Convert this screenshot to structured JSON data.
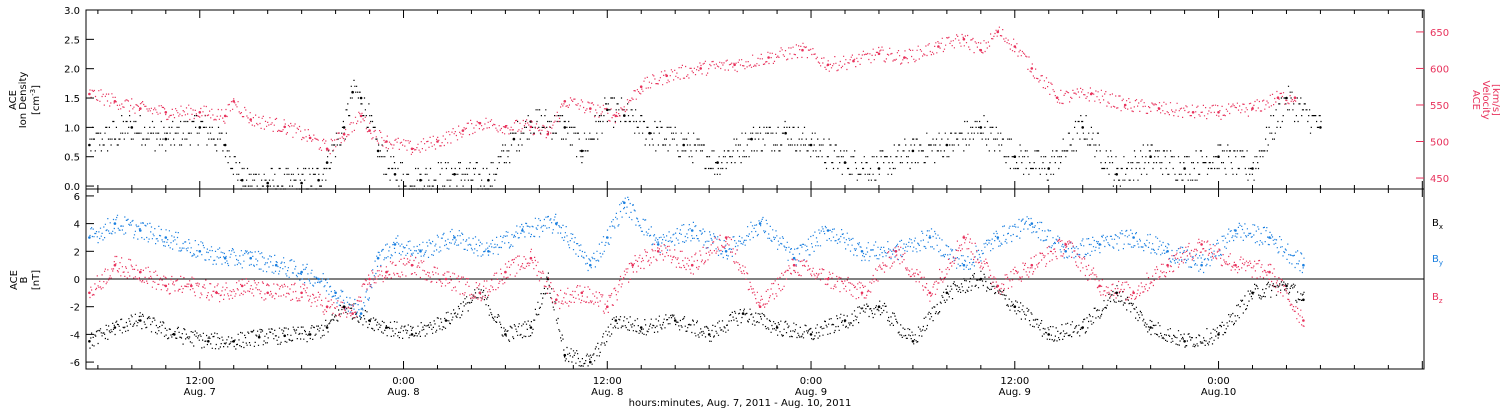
{
  "figure": {
    "xlabel": "hours:minutes, Aug.  7, 2011 - Aug. 10, 2011",
    "time_ticks": [
      {
        "hours": 12,
        "time": "12:00",
        "date": "Aug. 7"
      },
      {
        "hours": 24,
        "time": "0:00",
        "date": "Aug. 8"
      },
      {
        "hours": 36,
        "time": "12:00",
        "date": "Aug. 8"
      },
      {
        "hours": 48,
        "time": "0:00",
        "date": "Aug. 9"
      },
      {
        "hours": 60,
        "time": "12:00",
        "date": "Aug. 9"
      },
      {
        "hours": 72,
        "time": "0:00",
        "date": "Aug.10"
      }
    ],
    "colors": {
      "black": "#000000",
      "red": "#e8325c",
      "blue": "#1a7fe0"
    }
  },
  "chart_data": [
    {
      "type": "scatter",
      "panel": "top",
      "x_units": "hours since Aug. 7, 2011 00:00",
      "xlim": [
        5.3,
        84.1
      ],
      "left_axis": {
        "label_lines": [
          "ACE",
          "Ion Density"
        ],
        "unit_base": "[cm",
        "unit_sup": "-3",
        "unit_end": "]",
        "ylim": [
          -0.05,
          3.0
        ],
        "ticks": [
          "0.0",
          "0.5",
          "1.0",
          "1.5",
          "2.0",
          "2.5",
          "3.0"
        ]
      },
      "right_axis": {
        "label_lines": [
          "ACE",
          "Velocity"
        ],
        "unit": "[km/s]",
        "ylim": [
          435,
          680
        ],
        "ticks": [
          "450",
          "500",
          "550",
          "600",
          "650"
        ]
      },
      "series": [
        {
          "axis": "left",
          "color": "#000000",
          "x": [
            5.5,
            8.0,
            10.0,
            12.0,
            13.5,
            14.5,
            16.0,
            18.0,
            19.0,
            19.5,
            20.5,
            21.0,
            21.5,
            22.5,
            23.5,
            25.0,
            27.0,
            29.0,
            30.5,
            31.5,
            33.5,
            34.5,
            36.0,
            37.0,
            38.5,
            40.5,
            42.5,
            44.5,
            46.5,
            48.0,
            50.0,
            52.0,
            54.0,
            56.0,
            58.0,
            60.0,
            62.0,
            64.0,
            66.0,
            68.0,
            70.0,
            72.0,
            74.0,
            76.0,
            78.0
          ],
          "y": [
            0.7,
            1.0,
            0.8,
            1.0,
            0.7,
            0.1,
            0.05,
            0.05,
            0.1,
            0.4,
            1.0,
            1.6,
            1.5,
            0.6,
            0.2,
            0.1,
            0.2,
            0.1,
            0.8,
            1.1,
            1.0,
            0.6,
            1.3,
            1.2,
            0.9,
            0.7,
            0.4,
            0.8,
            0.9,
            0.7,
            0.4,
            0.3,
            0.6,
            0.7,
            1.0,
            0.5,
            0.3,
            1.0,
            0.2,
            0.5,
            0.3,
            0.5,
            0.3,
            1.5,
            1.0
          ]
        },
        {
          "axis": "right",
          "color": "#e8325c",
          "x": [
            5.5,
            7.0,
            8.5,
            10.0,
            12.0,
            13.5,
            14.0,
            15.0,
            17.0,
            18.5,
            19.5,
            20.5,
            21.5,
            22.0,
            23.0,
            24.5,
            26.0,
            27.5,
            28.5,
            30.0,
            31.5,
            32.5,
            33.5,
            35.0,
            36.5,
            38.0,
            39.5,
            41.5,
            43.5,
            45.5,
            47.5,
            49.0,
            50.5,
            52.0,
            53.5,
            55.5,
            57.0,
            58.0,
            59.0,
            60.0,
            61.0,
            62.5,
            64.5,
            66.5,
            68.5,
            70.5,
            72.0,
            74.0,
            75.5,
            76.5
          ],
          "y": [
            565,
            555,
            545,
            540,
            540,
            535,
            555,
            530,
            520,
            505,
            490,
            510,
            535,
            515,
            500,
            490,
            500,
            515,
            525,
            520,
            520,
            510,
            555,
            545,
            535,
            575,
            590,
            600,
            605,
            615,
            625,
            605,
            610,
            620,
            615,
            630,
            640,
            625,
            650,
            630,
            600,
            560,
            565,
            550,
            545,
            540,
            540,
            545,
            560,
            560
          ]
        }
      ]
    },
    {
      "type": "scatter",
      "panel": "bottom",
      "x_units": "hours since Aug. 7, 2011 00:00",
      "xlim": [
        5.3,
        84.1
      ],
      "axis": {
        "label_lines": [
          "ACE",
          "B"
        ],
        "unit": "[nT]",
        "ylim": [
          -6.5,
          6.5
        ],
        "ticks": [
          "-6",
          "-4",
          "-2",
          "0",
          "2",
          "4",
          "6"
        ],
        "zero_line": true
      },
      "series": [
        {
          "name_base": "B",
          "name_sub": "x",
          "color": "#000000",
          "x": [
            5.5,
            7.0,
            8.5,
            10.5,
            12.5,
            14.0,
            15.5,
            17.0,
            18.5,
            19.5,
            20.5,
            22.0,
            23.0,
            24.5,
            26.5,
            28.5,
            30.0,
            31.5,
            32.5,
            33.5,
            35.0,
            36.5,
            38.0,
            40.0,
            42.0,
            44.0,
            46.0,
            48.0,
            50.0,
            52.0,
            54.0,
            56.0,
            58.0,
            60.0,
            62.0,
            64.0,
            66.0,
            68.0,
            70.0,
            72.0,
            74.0,
            76.0,
            77.0
          ],
          "y": [
            -4.5,
            -3.5,
            -3.0,
            -4.0,
            -4.5,
            -4.5,
            -4.2,
            -4.1,
            -4.0,
            -3.5,
            -2.0,
            -3.0,
            -3.5,
            -4.0,
            -3.0,
            -1.0,
            -4.0,
            -3.5,
            0.0,
            -5.5,
            -6.0,
            -3.0,
            -3.5,
            -3.0,
            -4.0,
            -2.5,
            -3.5,
            -4.0,
            -3.0,
            -2.0,
            -4.5,
            -1.0,
            0.0,
            -2.0,
            -4.0,
            -3.5,
            -1.0,
            -3.5,
            -4.5,
            -4.0,
            -1.0,
            -0.5,
            -1.5
          ]
        },
        {
          "name_base": "B",
          "name_sub": "y",
          "color": "#1a7fe0",
          "x": [
            5.5,
            7.0,
            8.5,
            10.0,
            12.0,
            13.5,
            15.0,
            16.5,
            18.0,
            19.0,
            20.0,
            21.5,
            22.5,
            23.5,
            25.0,
            27.0,
            29.0,
            31.0,
            33.0,
            35.0,
            36.0,
            37.0,
            39.0,
            41.0,
            43.0,
            45.0,
            47.0,
            49.0,
            51.0,
            53.0,
            55.0,
            57.0,
            59.0,
            61.0,
            63.0,
            65.0,
            67.0,
            69.0,
            71.0,
            73.0,
            75.0,
            77.0
          ],
          "y": [
            3.0,
            4.0,
            3.5,
            3.0,
            2.0,
            1.5,
            1.5,
            1.0,
            0.5,
            0.0,
            -1.0,
            -2.5,
            1.5,
            2.5,
            2.0,
            3.0,
            2.0,
            3.5,
            4.0,
            1.0,
            3.0,
            5.5,
            2.5,
            3.5,
            2.0,
            4.0,
            1.5,
            3.5,
            2.0,
            2.0,
            3.0,
            1.0,
            3.0,
            4.0,
            2.0,
            2.5,
            3.0,
            2.0,
            1.0,
            3.5,
            3.0,
            1.0
          ]
        },
        {
          "name_base": "B",
          "name_sub": "z",
          "color": "#e8325c",
          "x": [
            5.5,
            7.0,
            8.5,
            10.0,
            11.5,
            13.0,
            14.5,
            16.0,
            18.0,
            19.5,
            21.0,
            22.0,
            23.0,
            24.5,
            26.5,
            28.5,
            30.0,
            31.5,
            33.0,
            34.5,
            36.0,
            37.5,
            39.0,
            41.0,
            43.0,
            45.0,
            47.0,
            49.0,
            51.0,
            53.0,
            55.0,
            57.0,
            59.0,
            61.0,
            63.0,
            65.0,
            67.0,
            69.0,
            71.0,
            73.0,
            75.0,
            77.0
          ],
          "y": [
            -1.0,
            1.0,
            0.5,
            -0.5,
            -0.5,
            -1.0,
            -0.5,
            -1.0,
            -1.0,
            -2.0,
            -2.5,
            0.0,
            0.5,
            1.0,
            0.0,
            -1.0,
            0.5,
            1.5,
            -1.5,
            -1.0,
            -2.0,
            1.0,
            2.0,
            1.0,
            3.0,
            -2.0,
            1.0,
            0.0,
            -1.0,
            2.0,
            -1.0,
            3.0,
            -0.5,
            1.0,
            2.5,
            -0.5,
            -1.0,
            1.0,
            2.5,
            1.0,
            0.5,
            -3.0
          ]
        }
      ]
    }
  ]
}
